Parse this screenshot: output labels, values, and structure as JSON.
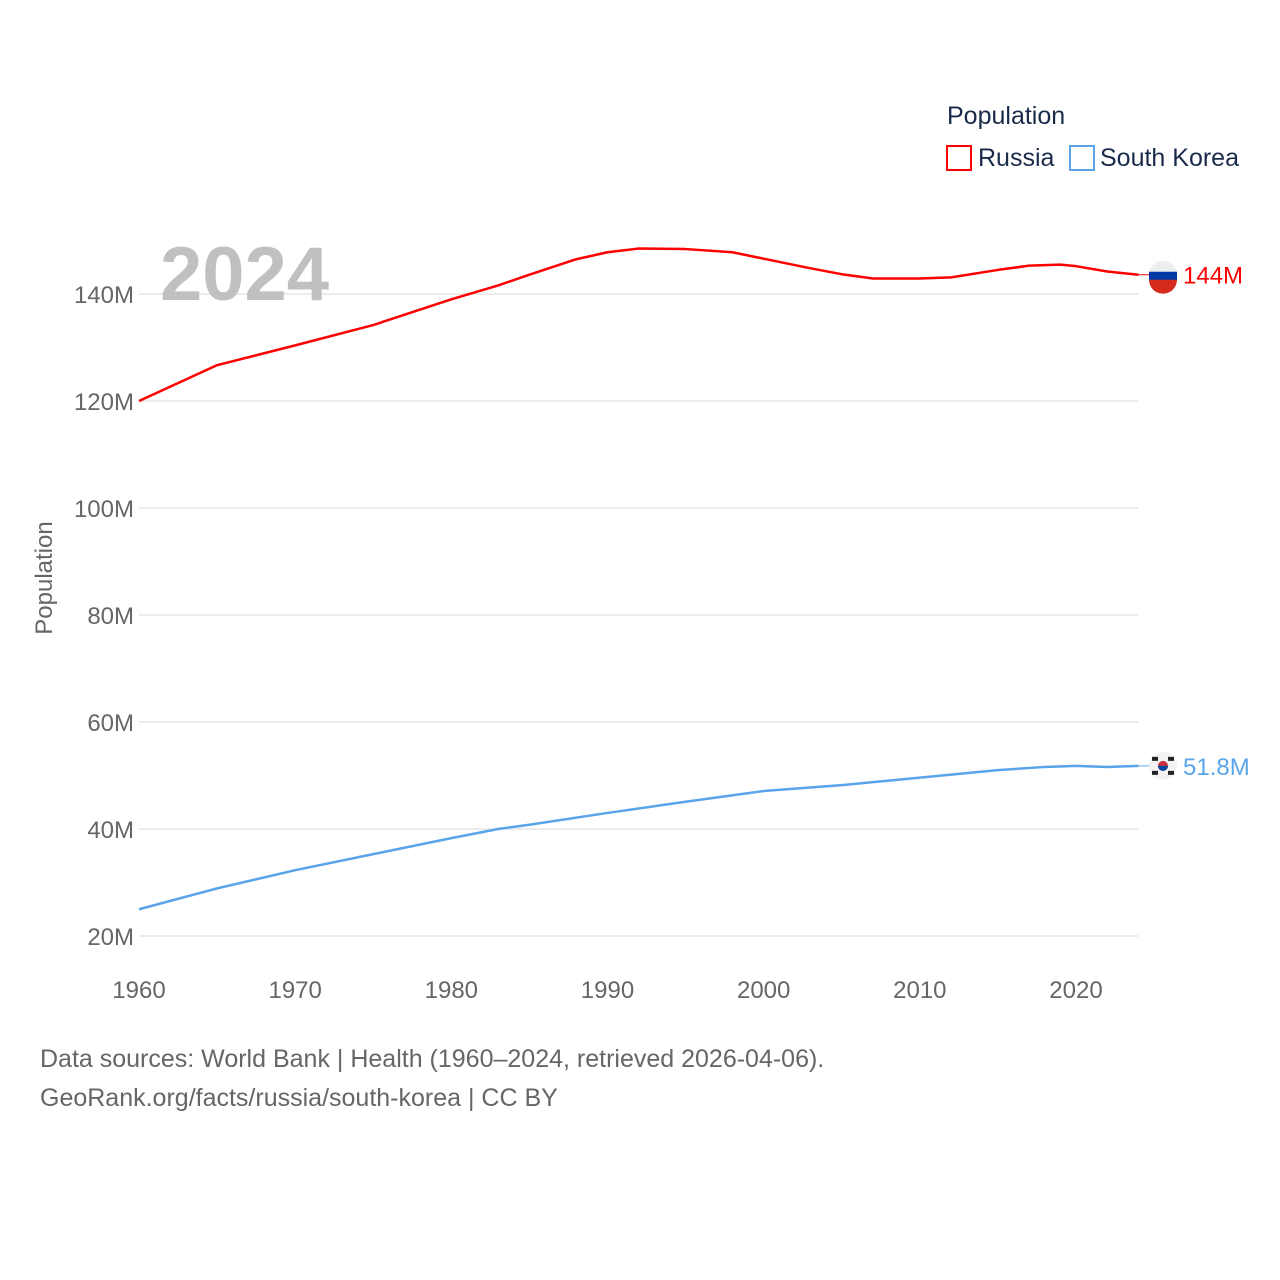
{
  "chart_data": {
    "type": "line",
    "title": "",
    "year_label": "2024",
    "xlabel": "",
    "ylabel": "Population",
    "xlim": [
      1960,
      2024
    ],
    "ylim": [
      20,
      144
    ],
    "x_ticks": [
      1960,
      1970,
      1980,
      1990,
      2000,
      2010,
      2020
    ],
    "x_tick_labels": [
      "1960",
      "1970",
      "1980",
      "1990",
      "2000",
      "2010",
      "2020"
    ],
    "y_ticks": [
      20,
      40,
      60,
      80,
      100,
      120,
      140
    ],
    "y_tick_labels": [
      "20M",
      "40M",
      "60M",
      "80M",
      "100M",
      "120M",
      "140M"
    ],
    "grid": true,
    "legend": {
      "title": "Population",
      "placement": "top-right",
      "entries": [
        "Russia",
        "South Korea"
      ]
    },
    "series": [
      {
        "name": "Russia",
        "color": "#ff0000",
        "end_label": "144M",
        "x": [
          1960,
          1965,
          1970,
          1975,
          1980,
          1983,
          1985,
          1988,
          1990,
          1992,
          1995,
          1998,
          2000,
          2003,
          2005,
          2007,
          2010,
          2012,
          2015,
          2017,
          2019,
          2020,
          2022,
          2024
        ],
        "values": [
          120.0,
          126.7,
          130.4,
          134.2,
          139.0,
          141.6,
          143.6,
          146.5,
          147.8,
          148.5,
          148.4,
          147.8,
          146.6,
          144.8,
          143.7,
          142.9,
          142.9,
          143.1,
          144.5,
          145.3,
          145.5,
          145.2,
          144.2,
          143.6
        ]
      },
      {
        "name": "South Korea",
        "color": "#5aa4ea",
        "end_label": "51.8M",
        "x": [
          1960,
          1965,
          1970,
          1975,
          1980,
          1983,
          1985,
          1990,
          1995,
          2000,
          2005,
          2010,
          2015,
          2018,
          2020,
          2022,
          2024
        ],
        "values": [
          25.0,
          28.9,
          32.3,
          35.3,
          38.3,
          40.0,
          40.8,
          43.0,
          45.1,
          47.1,
          48.2,
          49.6,
          51.0,
          51.6,
          51.8,
          51.6,
          51.8
        ]
      }
    ]
  },
  "sources": {
    "line1": "Data sources: World Bank | Health (1960–2024, retrieved 2026-04-06).",
    "line2": "GeoRank.org/facts/russia/south-korea | CC BY"
  }
}
